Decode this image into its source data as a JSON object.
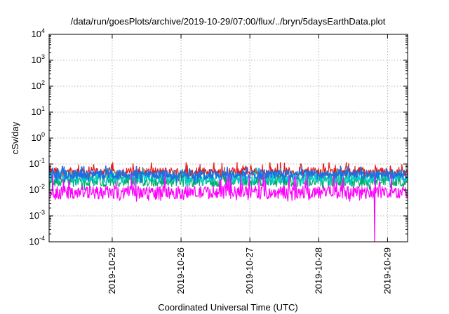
{
  "chart_data": {
    "type": "line",
    "title": "/data/run/goesPlots/archive/2019-10-29/07:00/flux/../bryn/5daysEarthData.plot",
    "xlabel": "Coordinated Universal Time (UTC)",
    "ylabel": "cSv/day",
    "yscale": "log",
    "ylim": [
      0.0001,
      10000
    ],
    "xlim": [
      "2019-10-24T02:00",
      "2019-10-29T07:00"
    ],
    "grid": true,
    "legend": "none",
    "y_ticks": [
      {
        "base": "10",
        "exp": "-4",
        "value": 0.0001
      },
      {
        "base": "10",
        "exp": "-3",
        "value": 0.001
      },
      {
        "base": "10",
        "exp": "-2",
        "value": 0.01
      },
      {
        "base": "10",
        "exp": "-1",
        "value": 0.1
      },
      {
        "base": "10",
        "exp": "0",
        "value": 1
      },
      {
        "base": "10",
        "exp": "1",
        "value": 10
      },
      {
        "base": "10",
        "exp": "2",
        "value": 100
      },
      {
        "base": "10",
        "exp": "3",
        "value": 1000
      },
      {
        "base": "10",
        "exp": "4",
        "value": 10000
      }
    ],
    "x_ticks": [
      {
        "label": "2019-10-25",
        "date": "2019-10-25T00:00"
      },
      {
        "label": "2019-10-26",
        "date": "2019-10-26T00:00"
      },
      {
        "label": "2019-10-27",
        "date": "2019-10-27T00:00"
      },
      {
        "label": "2019-10-28",
        "date": "2019-10-28T00:00"
      },
      {
        "label": "2019-10-29",
        "date": "2019-10-29T00:00"
      }
    ],
    "series": [
      {
        "color": "#e41a1c",
        "base": 0.05,
        "spike_max": 0.12,
        "noise": 0.18
      },
      {
        "color": "#00aa66",
        "base": 0.022,
        "spike_max": 0.05,
        "noise": 0.22
      },
      {
        "color": "#00cccc",
        "base": 0.03,
        "spike_max": 0.07,
        "noise": 0.2
      },
      {
        "color": "#1f6fe0",
        "base": 0.04,
        "spike_max": 0.085,
        "noise": 0.16
      },
      {
        "color": "#ff00ff",
        "base": 0.008,
        "spike_max": 0.04,
        "noise": 0.25
      }
    ],
    "anomalies": [
      {
        "series_color": "#ff00ff",
        "date": "2019-10-28T19:30",
        "value": 0.0001
      }
    ]
  }
}
